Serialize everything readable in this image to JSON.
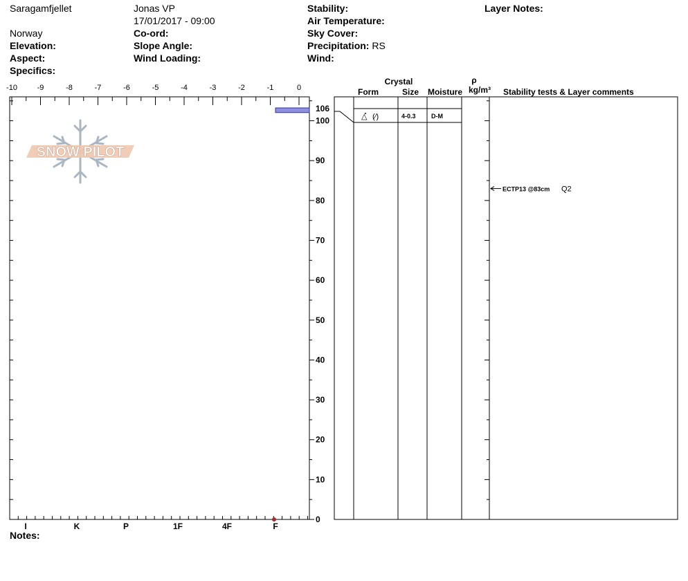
{
  "header": {
    "location": "Saragamfjellet",
    "observer": "Jonas VP",
    "datetime": "17/01/2017 - 09:00",
    "country": "Norway",
    "elevation_label": "Elevation:",
    "elevation_value": "",
    "aspect_label": "Aspect:",
    "aspect_value": "",
    "specifics_label": "Specifics:",
    "specifics_value": "",
    "coord_label": "Co-ord:",
    "coord_value": "",
    "slope_label": "Slope Angle:",
    "slope_value": "",
    "wind_loading_label": "Wind Loading:",
    "wind_loading_value": "",
    "stability_label": "Stability:",
    "stability_value": "",
    "air_temp_label": "Air Temperature:",
    "air_temp_value": "",
    "sky_label": "Sky Cover:",
    "sky_value": "",
    "precip_label": "Precipitation:",
    "precip_value": "RS",
    "wind_label": "Wind:",
    "wind_value": "",
    "layer_notes_label": "Layer Notes:",
    "notes_label": "Notes:",
    "logo_text": "SNOW PILOT"
  },
  "columns": {
    "crystal": "Crystal",
    "form": "Form",
    "size": "Size",
    "moisture": "Moisture",
    "rho": "ρ",
    "density_unit": "kg/m³",
    "comments": "Stability tests & Layer comments"
  },
  "chart_data": {
    "type": "snow-profile",
    "temperature_axis": {
      "ticks": [
        "-10",
        "-9",
        "-8",
        "-7",
        "-6",
        "-5",
        "-4",
        "-3",
        "-2",
        "-1",
        "0"
      ],
      "range": [
        -10,
        0
      ]
    },
    "depth_axis": {
      "ticks": [
        "0",
        "10",
        "20",
        "30",
        "40",
        "50",
        "60",
        "70",
        "80",
        "90",
        "100",
        "106"
      ],
      "range": [
        0,
        106
      ]
    },
    "hardness_axis": {
      "labels": [
        "I",
        "K",
        "P",
        "1F",
        "4F",
        "F"
      ]
    },
    "hardness_profile": [
      {
        "top": 106,
        "bottom": 105,
        "hardness": "F"
      }
    ],
    "surface_marker": {
      "hardness": "F",
      "depth": 0,
      "color": "#a52a2a"
    },
    "layers": [
      {
        "top": 106,
        "bottom": 105,
        "form_symbols": "(⁄)",
        "size": "4-0.3",
        "moisture": "D-M"
      }
    ],
    "tests": [
      {
        "text": "ECTP13 @83cm",
        "quality": "Q2",
        "depth": 83
      }
    ],
    "colors": {
      "hardness_fill": "#9090e0",
      "hardness_stroke": "#3030a0"
    }
  }
}
